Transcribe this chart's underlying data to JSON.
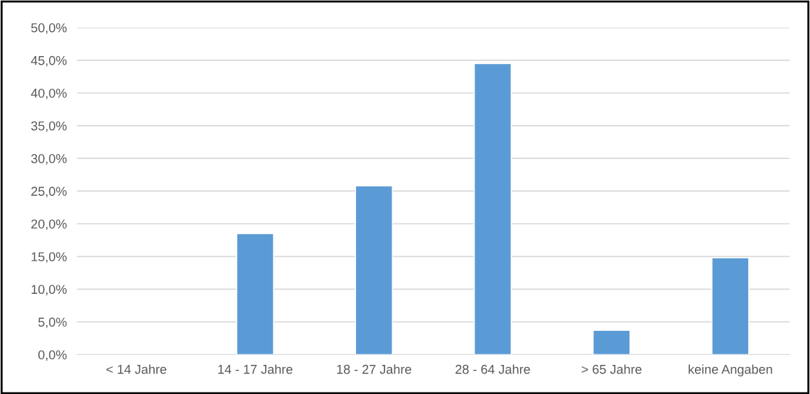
{
  "chart_data": {
    "type": "bar",
    "categories": [
      "< 14 Jahre",
      "14 - 17 Jahre",
      "18 - 27 Jahre",
      "28 - 64 Jahre",
      "> 65 Jahre",
      "keine Angaben"
    ],
    "values": [
      null,
      18.5,
      25.8,
      44.5,
      3.7,
      14.8
    ],
    "color": "#5b9bd5",
    "ylim": [
      0,
      50
    ],
    "yticks": [
      {
        "value": 0,
        "label": "0,0%"
      },
      {
        "value": 5,
        "label": "5,0%"
      },
      {
        "value": 10,
        "label": "10,0%"
      },
      {
        "value": 15,
        "label": "15,0%"
      },
      {
        "value": 20,
        "label": "20,0%"
      },
      {
        "value": 25,
        "label": "25,0%"
      },
      {
        "value": 30,
        "label": "30,0%"
      },
      {
        "value": 35,
        "label": "35,0%"
      },
      {
        "value": 40,
        "label": "40,0%"
      },
      {
        "value": 45,
        "label": "45,0%"
      },
      {
        "value": 50,
        "label": "50,0%"
      }
    ],
    "grid": "y"
  }
}
